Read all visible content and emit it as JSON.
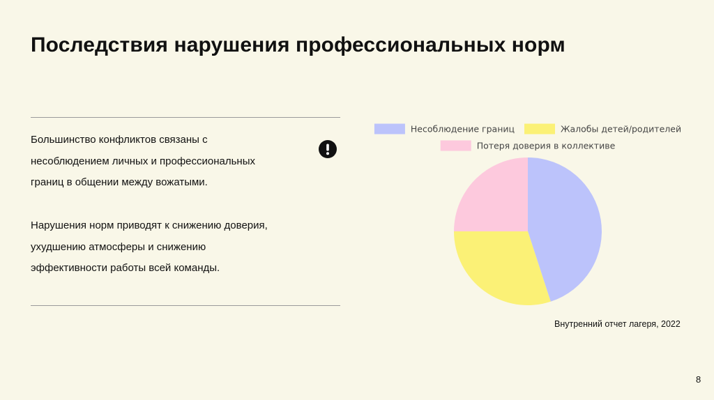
{
  "slide": {
    "title": "Последствия нарушения профессиональных норм",
    "paragraphs": [
      {
        "lines": [
          "Большинство конфликтов связаны с",
          "несоблюдением личных и профессиональных",
          "границ в общении между вожатыми."
        ]
      },
      {
        "lines": [
          "Нарушения норм приводят к снижению доверия,",
          "ухудшению атмосферы и снижению",
          "эффективности работы всей команды."
        ]
      }
    ],
    "alert_icon": "exclamation-circle-icon",
    "source": "Внутренний отчет лагеря, 2022",
    "page_number": "8"
  },
  "chart_data": {
    "type": "pie",
    "title": "",
    "start_angle_deg": 0,
    "direction": "clockwise",
    "legend_position": "top",
    "series": [
      {
        "name": "Несоблюдение границ",
        "value": 45,
        "color": "#bcc3fb"
      },
      {
        "name": "Жалобы детей/родителей",
        "value": 30,
        "color": "#fbf176"
      },
      {
        "name": "Потеря доверия в коллективе",
        "value": 25,
        "color": "#fdc9dd"
      }
    ]
  }
}
